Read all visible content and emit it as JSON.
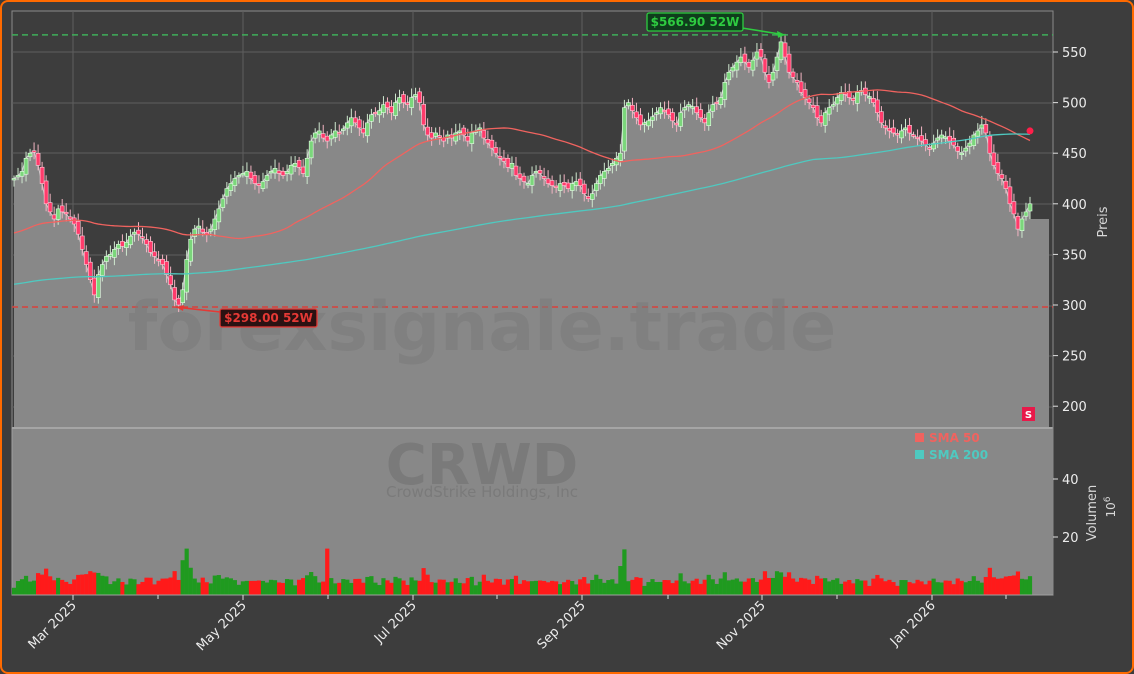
{
  "chart_data": {
    "type": "candlestick",
    "ticker": "CRWD",
    "company": "CrowdStrike Holdings, Inc",
    "watermark": "forexsignale.trade",
    "ylabel_price": "Preis",
    "ylabel_volume": "Volumen",
    "volume_unit": "10^6",
    "price_ticks": [
      200,
      250,
      300,
      350,
      400,
      450,
      500,
      550
    ],
    "price_ylim": [
      178,
      590
    ],
    "volume_ticks": [
      20,
      40
    ],
    "volume_ylim": [
      0,
      57
    ],
    "x_tick_labels": [
      "Mar 2025",
      "May 2025",
      "Jul 2025",
      "Sep 2025",
      "Nov 2025",
      "Jan 2026"
    ],
    "high_52w": {
      "value": 566.9,
      "label": "$566.90 52W",
      "color": "#2ecc40"
    },
    "low_52w": {
      "value": 298.0,
      "label": "$298.00 52W",
      "color": "#e53935"
    },
    "legend": [
      {
        "name": "SMA 50",
        "color": "#f0635f"
      },
      {
        "name": "SMA 200",
        "color": "#4fc9c0"
      }
    ],
    "signal_badge": "S",
    "last_close_approx": 385,
    "close_series_note": "approx. daily closes read from chart, Feb 2025 – Feb 2026",
    "closes": [
      425,
      428,
      432,
      445,
      450,
      452,
      438,
      420,
      400,
      392,
      385,
      395,
      392,
      390,
      385,
      380,
      370,
      355,
      340,
      325,
      310,
      330,
      340,
      348,
      350,
      355,
      360,
      358,
      362,
      368,
      372,
      370,
      366,
      360,
      352,
      348,
      345,
      340,
      330,
      320,
      305,
      300,
      315,
      345,
      365,
      375,
      378,
      372,
      370,
      375,
      385,
      395,
      405,
      415,
      420,
      425,
      428,
      430,
      432,
      425,
      420,
      418,
      422,
      428,
      432,
      435,
      430,
      428,
      432,
      438,
      440,
      436,
      430,
      445,
      462,
      470,
      472,
      465,
      462,
      468,
      472,
      470,
      474,
      480,
      485,
      480,
      475,
      470,
      480,
      488,
      490,
      492,
      498,
      495,
      490,
      500,
      505,
      500,
      498,
      505,
      508,
      500,
      478,
      468,
      465,
      470,
      466,
      462,
      468,
      465,
      470,
      472,
      468,
      462,
      470,
      472,
      475,
      465,
      460,
      455,
      450,
      445,
      442,
      436,
      440,
      428,
      425,
      422,
      420,
      428,
      432,
      430,
      425,
      420,
      418,
      416,
      420,
      418,
      415,
      420,
      422,
      418,
      410,
      405,
      410,
      420,
      428,
      432,
      435,
      440,
      445,
      450,
      495,
      500,
      492,
      485,
      478,
      480,
      482,
      486,
      490,
      495,
      492,
      488,
      482,
      478,
      490,
      495,
      498,
      496,
      490,
      485,
      480,
      490,
      498,
      500,
      505,
      520,
      530,
      535,
      540,
      545,
      540,
      535,
      542,
      550,
      545,
      530,
      520,
      530,
      545,
      560,
      545,
      530,
      525,
      520,
      510,
      505,
      500,
      495,
      485,
      480,
      490,
      495,
      498,
      505,
      510,
      508,
      505,
      502,
      510,
      512,
      508,
      506,
      500,
      490,
      480,
      475,
      472,
      470,
      468,
      472,
      475,
      470,
      468,
      465,
      462,
      458,
      455,
      460,
      465,
      468,
      466,
      462,
      458,
      452,
      450,
      455,
      460,
      468,
      472,
      478,
      470,
      450,
      438,
      430,
      425,
      415,
      400,
      390,
      375,
      385,
      392,
      400
    ]
  }
}
